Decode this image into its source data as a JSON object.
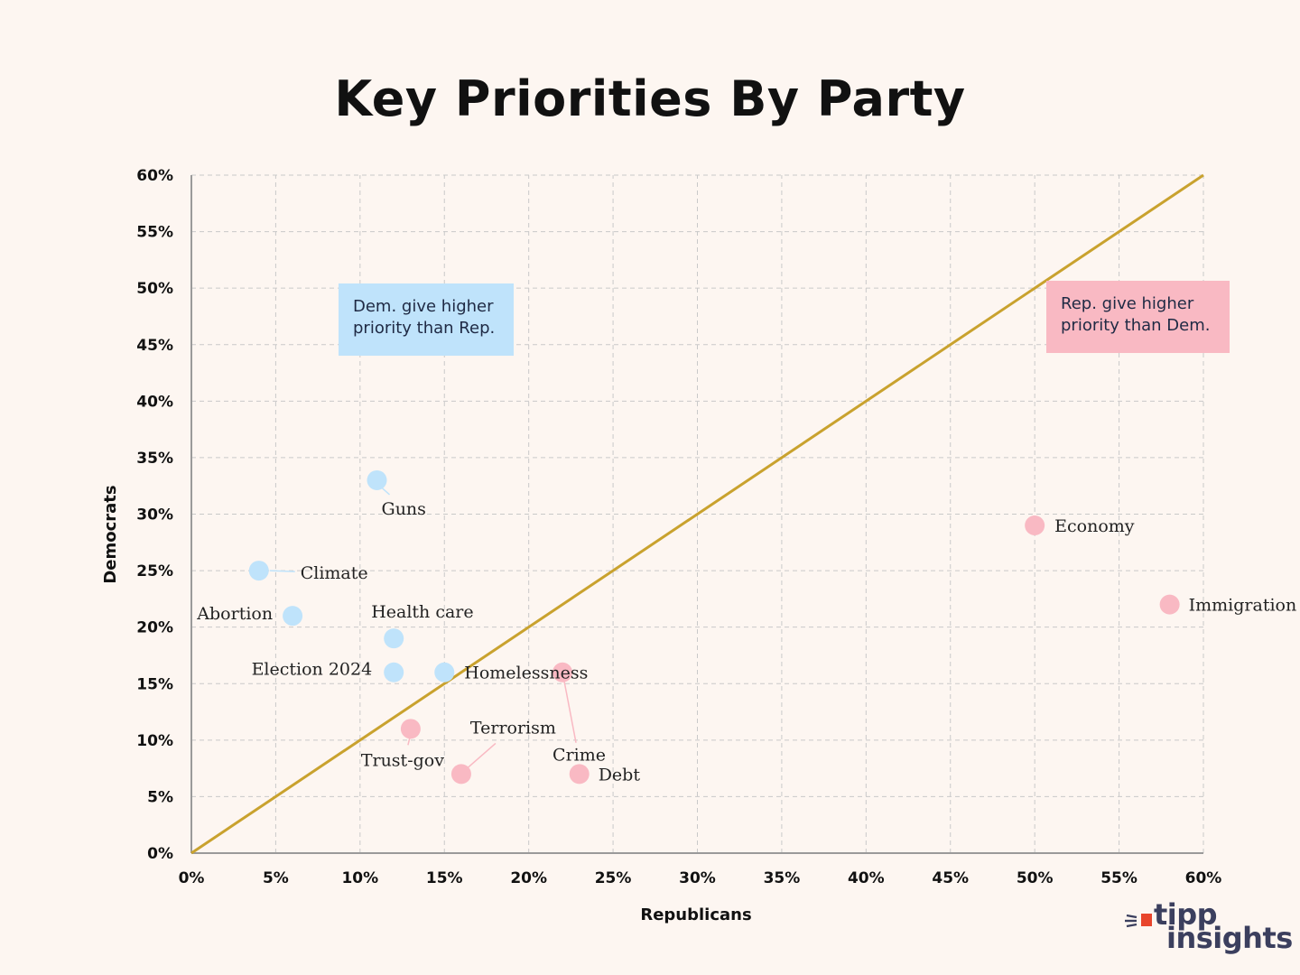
{
  "chart_data": {
    "type": "scatter",
    "title": "Key Priorities By Party",
    "xlabel": "Republicans",
    "ylabel": "Democrats",
    "xlim": [
      0,
      60
    ],
    "ylim": [
      0,
      60
    ],
    "x_ticks": [
      "0%",
      "5%",
      "10%",
      "15%",
      "20%",
      "25%",
      "30%",
      "35%",
      "40%",
      "45%",
      "50%",
      "55%",
      "60%"
    ],
    "y_ticks": [
      "0%",
      "5%",
      "10%",
      "15%",
      "20%",
      "25%",
      "30%",
      "35%",
      "40%",
      "45%",
      "50%",
      "55%",
      "60%"
    ],
    "grid": true,
    "reference_line": {
      "from": [
        0,
        0
      ],
      "to": [
        60,
        60
      ],
      "color": "#c9a22e"
    },
    "colors": {
      "dem": "#bfe3fb",
      "rep": "#f9b9c3"
    },
    "points": [
      {
        "label": "Guns",
        "x": 11,
        "y": 33,
        "group": "dem"
      },
      {
        "label": "Climate",
        "x": 4,
        "y": 25,
        "group": "dem"
      },
      {
        "label": "Abortion",
        "x": 6,
        "y": 21,
        "group": "dem"
      },
      {
        "label": "Health care",
        "x": 12,
        "y": 19,
        "group": "dem"
      },
      {
        "label": "Election 2024",
        "x": 12,
        "y": 16,
        "group": "dem"
      },
      {
        "label": "Homelessness",
        "x": 15,
        "y": 16,
        "group": "dem"
      },
      {
        "label": "Economy",
        "x": 50,
        "y": 29,
        "group": "rep"
      },
      {
        "label": "Immigration",
        "x": 58,
        "y": 22,
        "group": "rep"
      },
      {
        "label": "Crime",
        "x": 22,
        "y": 16,
        "group": "rep"
      },
      {
        "label": "Trust-gov",
        "x": 13,
        "y": 11,
        "group": "rep"
      },
      {
        "label": "Terrorism",
        "x": 16,
        "y": 7,
        "group": "rep"
      },
      {
        "label": "Debt",
        "x": 23,
        "y": 7,
        "group": "rep"
      }
    ],
    "annotations": {
      "dem": [
        "Dem. give higher",
        "priority than Rep."
      ],
      "rep": [
        "Rep. give higher",
        "priority than Dem."
      ]
    }
  },
  "logo": {
    "line1": "tipp",
    "line2": "insights"
  }
}
